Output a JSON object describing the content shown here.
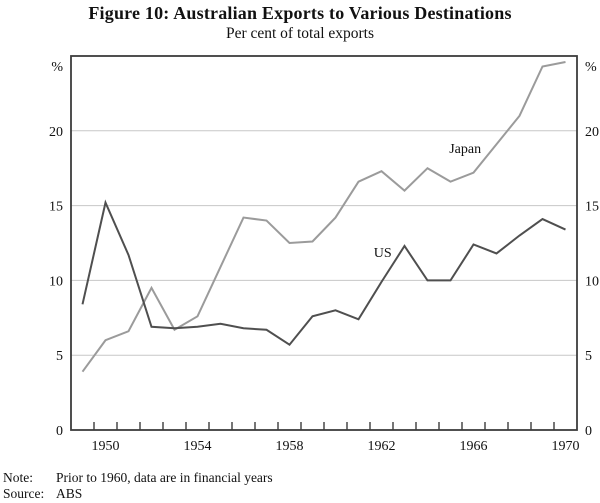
{
  "footer": {
    "note_label": "Note:",
    "note_text": "Prior to 1960, data are in financial years",
    "source_label": "Source:",
    "source_text": "ABS"
  },
  "chart_data": {
    "type": "line",
    "title": "Figure 10: Australian Exports to Various Destinations",
    "subtitle": "Per cent of total exports",
    "unit_label": "%",
    "x": [
      1949,
      1950,
      1951,
      1952,
      1953,
      1954,
      1955,
      1956,
      1957,
      1958,
      1959,
      1960,
      1961,
      1962,
      1963,
      1964,
      1965,
      1966,
      1967,
      1968,
      1969,
      1970
    ],
    "series": [
      {
        "name": "Japan",
        "color": "#9b9b9b",
        "values": [
          3.9,
          6.0,
          6.6,
          9.5,
          6.7,
          7.6,
          10.9,
          14.2,
          14.0,
          12.5,
          12.6,
          14.2,
          16.6,
          17.3,
          16.0,
          17.5,
          16.6,
          17.2,
          19.1,
          21.0,
          24.3,
          24.6
        ]
      },
      {
        "name": "US",
        "color": "#4f4f4f",
        "values": [
          8.4,
          15.2,
          11.7,
          6.9,
          6.8,
          6.9,
          7.1,
          6.8,
          6.7,
          5.7,
          7.6,
          8.0,
          7.4,
          9.9,
          12.3,
          10.0,
          10.0,
          12.4,
          11.8,
          13.0,
          14.1,
          13.4
        ]
      }
    ],
    "series_labels": [
      {
        "text": "Japan",
        "fx": 0.779,
        "fy": 0.246
      },
      {
        "text": "US",
        "fx": 0.616,
        "fy": 0.524
      }
    ],
    "xlim": [
      1948.5,
      1970.5
    ],
    "ylim": [
      0,
      25
    ],
    "yticks": [
      0,
      5,
      10,
      15,
      20
    ],
    "xticks": [
      1950,
      1954,
      1958,
      1962,
      1966,
      1970
    ],
    "minor_xtick_step": 1,
    "grid": "horizontal",
    "axes_mirrored": true,
    "gridline_color": "#c7c7c7",
    "axis_color": "#3c3c3c"
  }
}
